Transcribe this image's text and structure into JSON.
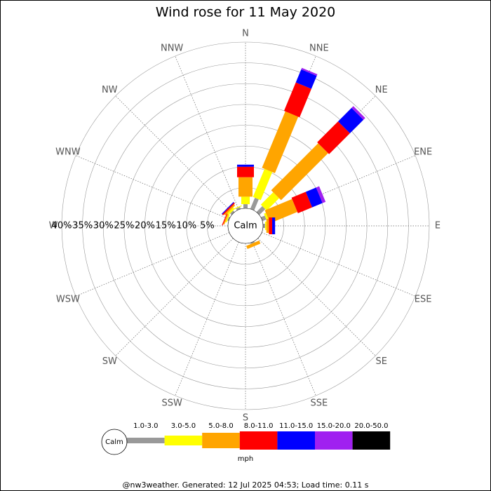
{
  "chart_data": {
    "type": "windrose",
    "title": "Wind rose for 11 May 2020",
    "directions": [
      "N",
      "NNE",
      "NE",
      "ENE",
      "E",
      "ESE",
      "SE",
      "SSE",
      "S",
      "SSW",
      "SW",
      "WSW",
      "W",
      "WNW",
      "NW",
      "NNW"
    ],
    "calm_label": "Calm",
    "rlim": [
      0,
      40
    ],
    "rticks": [
      {
        "value": 5,
        "label": "5%"
      },
      {
        "value": 10,
        "label": "10%"
      },
      {
        "value": 15,
        "label": "15%"
      },
      {
        "value": 20,
        "label": "20%"
      },
      {
        "value": 25,
        "label": "25%"
      },
      {
        "value": 30,
        "label": "30%"
      },
      {
        "value": 35,
        "label": "35%"
      },
      {
        "value": 40,
        "label": "40%"
      }
    ],
    "series": [
      {
        "name": "1.0-3.0",
        "color": "#999999",
        "values": [
          1.0,
          2.9,
          2.0,
          1.0,
          0.5,
          0,
          0,
          0.3,
          0,
          0,
          0,
          0,
          0,
          0.3,
          0.5,
          0.5
        ]
      },
      {
        "name": "3.0-5.0",
        "color": "#ffff00",
        "values": [
          1.8,
          7.3,
          4.2,
          0.5,
          0.3,
          0,
          0,
          0,
          0,
          0,
          0,
          0,
          0,
          0.3,
          0.5,
          0.2
        ]
      },
      {
        "name": "5.0-8.0",
        "color": "#ffa500",
        "values": [
          4.7,
          14.7,
          16.0,
          7.1,
          0.6,
          0,
          0,
          0.8,
          0,
          0,
          0,
          0,
          0,
          0.3,
          0.4,
          0
        ]
      },
      {
        "name": "8.0-11.0",
        "color": "#ff0000",
        "values": [
          2.5,
          7.4,
          7.1,
          3.7,
          0.8,
          0,
          0,
          0,
          0,
          0,
          0,
          0,
          0,
          0.2,
          0.3,
          0
        ]
      },
      {
        "name": "11.0-15.0",
        "color": "#0000ff",
        "values": [
          0.5,
          3.4,
          4.6,
          2.7,
          0.7,
          0,
          0,
          0,
          0,
          0,
          0,
          0,
          0,
          0,
          0.2,
          0
        ]
      },
      {
        "name": "15.0-20.0",
        "color": "#a020f0",
        "values": [
          0,
          0.4,
          0.6,
          0.8,
          0,
          0,
          0,
          0,
          0,
          0,
          0,
          0,
          0,
          0,
          0,
          0
        ]
      },
      {
        "name": "20.0-50.0",
        "color": "#000000",
        "values": [
          0,
          0,
          0,
          0,
          0,
          0,
          0,
          0,
          0,
          0,
          0,
          0,
          0,
          0,
          0,
          0
        ]
      }
    ],
    "legend_unit": "mph",
    "footer": "@nw3weather. Generated: 12 Jul 2025 04:53; Load time: 0.11 s"
  }
}
